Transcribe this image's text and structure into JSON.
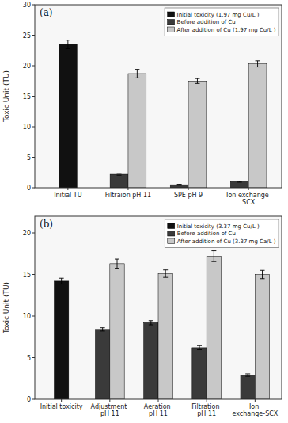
{
  "chart_data": [
    {
      "type": "bar",
      "title": "(a)",
      "y_label": "Toxic Unit (TU)",
      "categories": [
        "Initial TU",
        "Filtraion pH 11",
        "SPE pH 9",
        "Ion exchange SCX"
      ],
      "series": [
        {
          "name": "Initial toxicity (1.97 mg Cu/L )",
          "color": "#111111",
          "values": [
            23.5,
            null,
            null,
            null
          ],
          "errors": [
            0.7,
            null,
            null,
            null
          ]
        },
        {
          "name": "Before addition of Cu",
          "color": "#3a3a3a",
          "values": [
            null,
            2.2,
            0.5,
            1.0
          ],
          "errors": [
            null,
            0.15,
            0.08,
            0.08
          ]
        },
        {
          "name": "After addition of Cu (1.97 mg Cu/L )",
          "color": "#c8c8c8",
          "values": [
            null,
            18.7,
            17.5,
            20.3
          ],
          "errors": [
            null,
            0.7,
            0.4,
            0.5
          ]
        }
      ],
      "ylim": [
        0,
        30
      ],
      "yticks": [
        0,
        5,
        10,
        15,
        20,
        25,
        30
      ],
      "grid": false,
      "legend": "upper right"
    },
    {
      "type": "bar",
      "title": "(b)",
      "y_label": "Toxic Unit (TU)",
      "categories": [
        "Initial toxicity",
        "Adjustment pH 11",
        "Aeration pH 11",
        "Filtration pH 11",
        "Ion exchange-SCX"
      ],
      "series": [
        {
          "name": "Initial toxicity (3.37 mg Cu/L )",
          "color": "#111111",
          "values": [
            14.2,
            null,
            null,
            null,
            null
          ],
          "errors": [
            0.35,
            null,
            null,
            null,
            null
          ]
        },
        {
          "name": "Before addition of Cu",
          "color": "#3a3a3a",
          "values": [
            null,
            8.4,
            9.2,
            6.2,
            2.9
          ],
          "errors": [
            null,
            0.2,
            0.25,
            0.25,
            0.15
          ]
        },
        {
          "name": "After addition of Cu (3.37 mg Ca/L )",
          "color": "#c8c8c8",
          "values": [
            null,
            16.3,
            15.1,
            17.2,
            15.0
          ],
          "errors": [
            null,
            0.55,
            0.45,
            0.65,
            0.5
          ]
        }
      ],
      "ylim": [
        0,
        22
      ],
      "yticks": [
        0,
        5,
        10,
        15,
        20
      ],
      "grid": false,
      "legend": "upper right"
    }
  ]
}
